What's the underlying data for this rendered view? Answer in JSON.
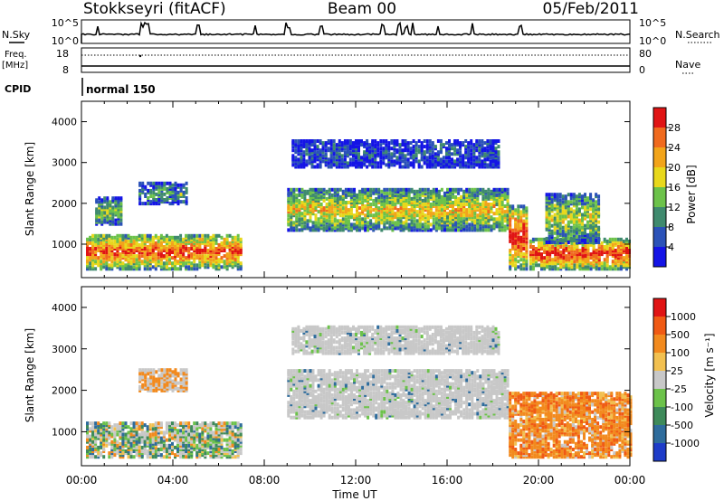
{
  "header": {
    "station": "Stokkseyri (fitACF)",
    "beam": "Beam 00",
    "date": "05/Feb/2011"
  },
  "status_panel": {
    "nsky_label": "N.Sky",
    "nsky_ticks": [
      "10^5",
      "10^0"
    ],
    "nsearch_label": "N.Search",
    "nsearch_ticks": [
      "10^5",
      "10^0"
    ],
    "freq_label_1": "Freq.",
    "freq_label_2": "[MHz]",
    "freq_ticks": [
      "18",
      "8"
    ],
    "nave_label": "Nave",
    "nave_ticks": [
      "80",
      "0"
    ],
    "cpid_label": "CPID",
    "cpid_value": "normal 150"
  },
  "x_axis": {
    "ticks": [
      "00:00",
      "04:00",
      "08:00",
      "12:00",
      "16:00",
      "20:00",
      "00:00"
    ],
    "label": "Time UT"
  },
  "chart_data": [
    {
      "type": "heatmap",
      "panel": "power",
      "ylabel": "Slant Range [km]",
      "y_ticks": [
        "1000",
        "2000",
        "3000",
        "4000"
      ],
      "ylim": [
        180,
        4500
      ],
      "xlim_hours": [
        0,
        24
      ],
      "colorbar": {
        "label": "Power [dB]",
        "ticks": [
          "4",
          "8",
          "12",
          "16",
          "20",
          "24",
          "28"
        ],
        "range": [
          0,
          30
        ],
        "colors": [
          "#1414e6",
          "#2b52b8",
          "#3f8a6e",
          "#6cc24a",
          "#e8d81c",
          "#f2a41a",
          "#f06a1e",
          "#e01414"
        ]
      },
      "regions": [
        {
          "t0": 0.6,
          "t1": 1.7,
          "r0": 1450,
          "r1": 2100,
          "level": 0.4
        },
        {
          "t0": 0.2,
          "t1": 7.0,
          "r0": 350,
          "r1": 1200,
          "level": 0.75
        },
        {
          "t0": 2.5,
          "t1": 4.6,
          "r0": 1950,
          "r1": 2450,
          "level": 0.3
        },
        {
          "t0": 9.0,
          "t1": 18.7,
          "r0": 1300,
          "r1": 2300,
          "level": 0.55
        },
        {
          "t0": 9.2,
          "t1": 18.3,
          "r0": 2850,
          "r1": 3500,
          "level": 0.15
        },
        {
          "t0": 18.7,
          "t1": 19.5,
          "r0": 350,
          "r1": 1900,
          "level": 0.85
        },
        {
          "t0": 19.6,
          "t1": 24.0,
          "r0": 350,
          "r1": 1100,
          "level": 0.8
        },
        {
          "t0": 20.3,
          "t1": 22.6,
          "r0": 1000,
          "r1": 2200,
          "level": 0.45
        }
      ]
    },
    {
      "type": "heatmap",
      "panel": "velocity",
      "ylabel": "Slant Range [km]",
      "y_ticks": [
        "1000",
        "2000",
        "3000",
        "4000"
      ],
      "ylim": [
        180,
        4500
      ],
      "xlim_hours": [
        0,
        24
      ],
      "colorbar": {
        "label": "Velocity [m s⁻¹]",
        "ticks": [
          "1000",
          "500",
          "100",
          "25",
          "-25",
          "-100",
          "-500",
          "-1000"
        ],
        "colors": [
          "#1e3cc8",
          "#2e6c9c",
          "#3e8a5a",
          "#6cc24a",
          "#c8c8c8",
          "#f2c050",
          "#f28a1e",
          "#f05a14",
          "#e01414"
        ]
      },
      "regions": [
        {
          "t0": 0.2,
          "t1": 7.0,
          "r0": 350,
          "r1": 1200,
          "class": "mixed-green-grey"
        },
        {
          "t0": 2.5,
          "t1": 4.6,
          "r0": 1950,
          "r1": 2450,
          "class": "grey-orange"
        },
        {
          "t0": 9.0,
          "t1": 18.7,
          "r0": 1300,
          "r1": 2450,
          "class": "grey"
        },
        {
          "t0": 9.2,
          "t1": 18.3,
          "r0": 2850,
          "r1": 3500,
          "class": "grey"
        },
        {
          "t0": 18.7,
          "t1": 24.0,
          "r0": 350,
          "r1": 1900,
          "class": "orange"
        }
      ]
    }
  ]
}
